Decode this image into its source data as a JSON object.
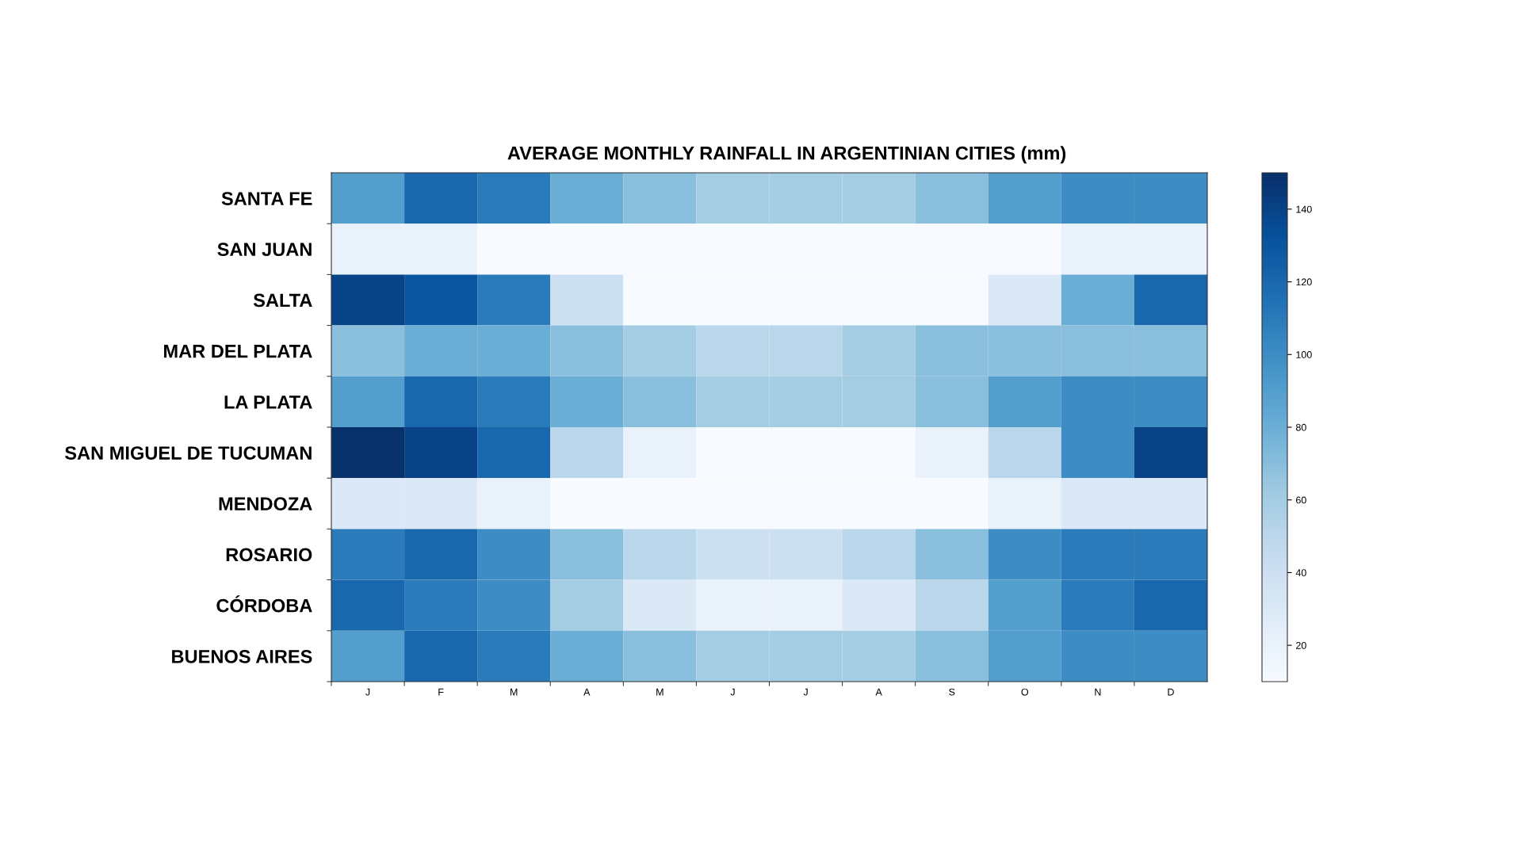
{
  "chart_data": {
    "type": "heatmap",
    "title": "AVERAGE MONTHLY RAINFALL IN ARGENTINIAN CITIES (mm)",
    "categories": [
      "J",
      "F",
      "M",
      "A",
      "M",
      "J",
      "J",
      "A",
      "S",
      "O",
      "N",
      "D"
    ],
    "y_categories": [
      "SANTA FE",
      "SAN JUAN",
      "SALTA",
      "MAR DEL PLATA",
      "LA PLATA",
      "SAN MIGUEL DE TUCUMAN",
      "MENDOZA",
      "ROSARIO",
      "CÓRDOBA",
      "BUENOS AIRES"
    ],
    "cells": [
      [
        90,
        120,
        110,
        80,
        70,
        60,
        60,
        60,
        70,
        90,
        100,
        100
      ],
      [
        20,
        20,
        10,
        10,
        10,
        10,
        10,
        10,
        10,
        10,
        20,
        20
      ],
      [
        140,
        130,
        110,
        40,
        10,
        10,
        10,
        10,
        10,
        30,
        80,
        120
      ],
      [
        70,
        80,
        80,
        70,
        60,
        50,
        50,
        60,
        70,
        70,
        70,
        70
      ],
      [
        90,
        120,
        110,
        80,
        70,
        60,
        60,
        60,
        70,
        90,
        100,
        100
      ],
      [
        150,
        140,
        120,
        50,
        20,
        10,
        10,
        10,
        20,
        50,
        100,
        140
      ],
      [
        30,
        30,
        20,
        10,
        10,
        10,
        10,
        10,
        10,
        20,
        30,
        30
      ],
      [
        110,
        120,
        100,
        70,
        50,
        40,
        40,
        50,
        70,
        100,
        110,
        110
      ],
      [
        120,
        110,
        100,
        60,
        30,
        20,
        20,
        30,
        50,
        90,
        110,
        120
      ],
      [
        90,
        120,
        110,
        80,
        70,
        60,
        60,
        60,
        70,
        90,
        100,
        100
      ]
    ],
    "clim": [
      10,
      150
    ],
    "cticks": [
      20,
      40,
      60,
      80,
      100,
      120,
      140
    ]
  }
}
